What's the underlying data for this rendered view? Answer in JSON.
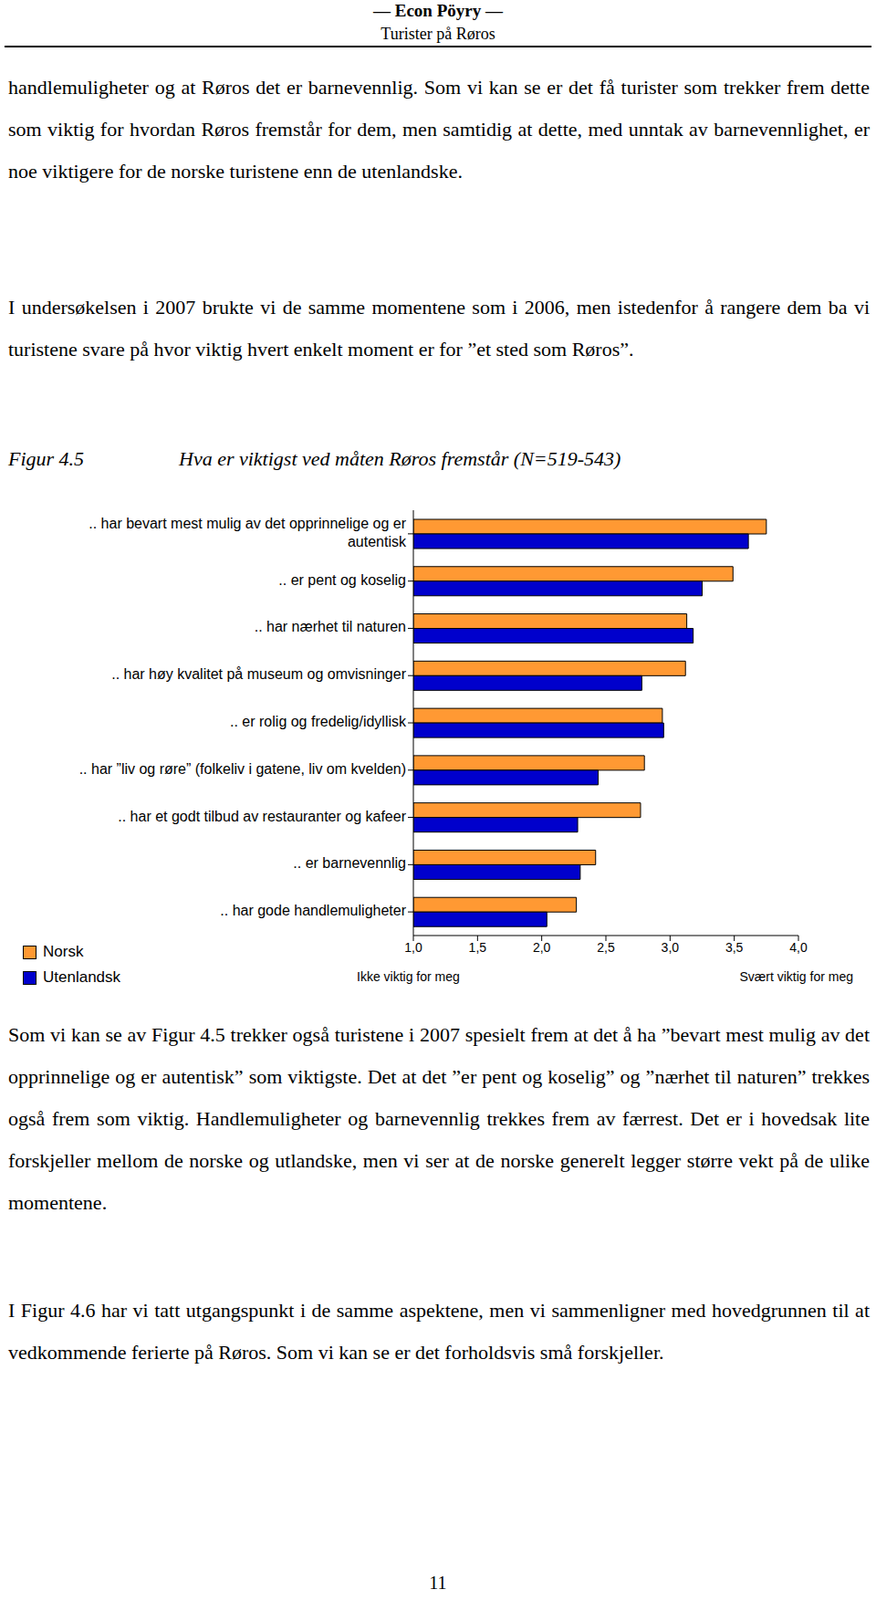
{
  "header": {
    "title": "— Econ Pöyry —",
    "subtitle": "Turister på Røros"
  },
  "paragraphs_before": [
    "handlemuligheter og at Røros det er barnevennlig. Som vi kan se er det få turister som trekker frem dette som viktig for hvordan Røros fremstår for dem, men samtidig at dette, med unntak av barnevennlighet, er noe viktigere for de norske turistene enn de utenlandske.",
    "I undersøkelsen i 2007 brukte vi de samme momentene som i 2006, men istedenfor å rangere dem ba vi turistene svare på hvor viktig hvert enkelt moment er for ”et sted som Røros”."
  ],
  "figure_label": "Figur 4.5",
  "figure_caption": "Hva er viktigst ved måten Røros fremstår (N=519-543)",
  "chart_data": {
    "type": "bar",
    "orientation": "horizontal",
    "categories": [
      ".. har bevart mest mulig av det opprinnelige og er autentisk",
      ".. er pent og koselig",
      ".. har nærhet til naturen",
      ".. har høy kvalitet på museum og omvisninger",
      ".. er rolig og fredelig/idyllisk",
      ".. har ”liv og røre” (folkeliv i gatene, liv om kvelden)",
      ".. har et godt tilbud av restauranter og kafeer",
      ".. er barnevennlig",
      ".. har gode handlemuligheter"
    ],
    "series": [
      {
        "name": "Norsk",
        "color": "#ff9933",
        "values": [
          3.75,
          3.49,
          3.13,
          3.12,
          2.94,
          2.8,
          2.77,
          2.42,
          2.27
        ]
      },
      {
        "name": "Utenlandsk",
        "color": "#0000cc",
        "values": [
          3.61,
          3.25,
          3.18,
          2.78,
          2.95,
          2.44,
          2.28,
          2.3,
          2.04
        ]
      }
    ],
    "xlim": [
      1,
      4
    ],
    "xticks": [
      {
        "value": 1,
        "label": "1,0"
      },
      {
        "value": 1.5,
        "label": "1,5"
      },
      {
        "value": 2,
        "label": "2,0"
      },
      {
        "value": 2.5,
        "label": "2,5"
      },
      {
        "value": 3,
        "label": "3,0"
      },
      {
        "value": 3.5,
        "label": "3,5"
      },
      {
        "value": 4,
        "label": "4,0"
      }
    ],
    "x_axis_end_labels": [
      "Ikke viktig for meg",
      "Svært viktig for meg"
    ],
    "legend": "lower left",
    "grid": false
  },
  "paragraphs_after": [
    "Som vi kan se av Figur 4.5 trekker også turistene i 2007 spesielt frem at det å ha ”bevart mest mulig av det opprinnelige og er autentisk” som viktigste. Det at det ”er pent og koselig” og ”nærhet til naturen” trekkes også frem som viktig. Handlemuligheter og barnevennlig trekkes frem av færrest. Det er i hovedsak lite forskjeller mellom de norske og utlandske, men vi ser at de norske generelt legger større vekt på de ulike momentene.",
    "I Figur 4.6 har vi tatt utgangspunkt i de samme aspektene, men vi sammenligner med hovedgrunnen til at vedkommende ferierte på Røros. Som vi kan se er det forholdsvis små forskjeller."
  ],
  "page_number": "11"
}
